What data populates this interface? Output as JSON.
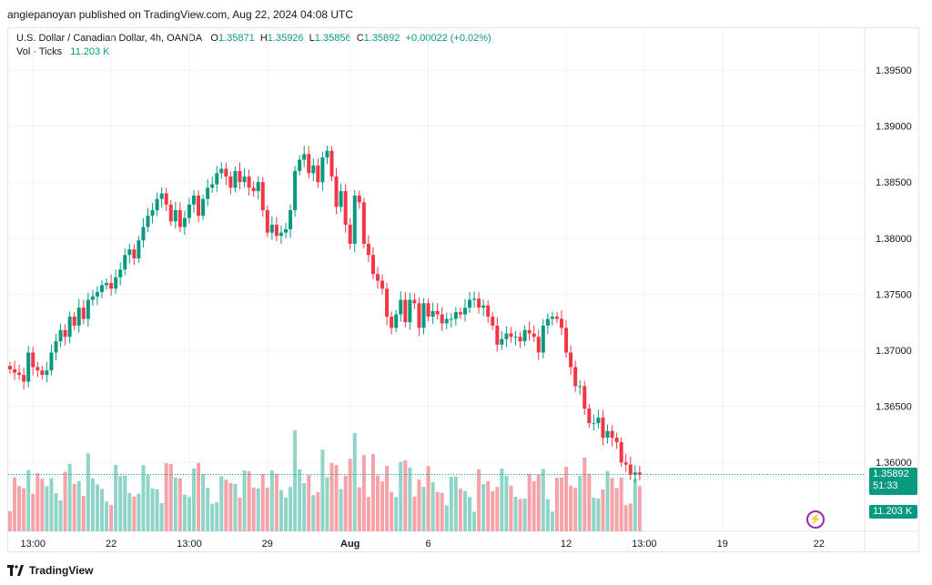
{
  "header": {
    "publish_text": "angiepanoyan published on TradingView.com, Aug 22, 2024 04:08 UTC"
  },
  "legend": {
    "symbol": "U.S. Dollar / Canadian Dollar, 4h, OANDA",
    "o_label": "O",
    "o": "1.35871",
    "h_label": "H",
    "h": "1.35926",
    "l_label": "L",
    "l": "1.35856",
    "c_label": "C",
    "c": "1.35892",
    "change": "+0.00022 (+0.02%)",
    "vol_label": "Vol · Ticks",
    "vol_value": "11.203 K"
  },
  "badges": {
    "price": "1.35892",
    "countdown": "51:33",
    "volume": "11.203 K"
  },
  "footer": {
    "brand": "TradingView"
  },
  "colors": {
    "up": "#089981",
    "down": "#f23645",
    "vol_up": "#8fd4c8",
    "vol_down": "#f5a3a8"
  },
  "chart_data": {
    "type": "candlestick",
    "title": "",
    "ylim": [
      1.355,
      1.3975
    ],
    "yticks": [
      "1.39500",
      "1.39000",
      "1.38500",
      "1.38000",
      "1.37500",
      "1.37000",
      "1.36500",
      "1.36000"
    ],
    "y_tick_values": [
      1.395,
      1.39,
      1.385,
      1.38,
      1.375,
      1.37,
      1.365,
      1.36
    ],
    "last_price": 1.35892,
    "xticks": [
      {
        "label": "13:00",
        "bar": 5,
        "bold": false
      },
      {
        "label": "22",
        "bar": 22,
        "bold": false
      },
      {
        "label": "13:00",
        "bar": 39,
        "bold": false
      },
      {
        "label": "29",
        "bar": 56,
        "bold": false
      },
      {
        "label": "Aug",
        "bar": 74,
        "bold": true
      },
      {
        "label": "6",
        "bar": 91,
        "bold": false
      },
      {
        "label": "12",
        "bar": 121,
        "bold": false
      },
      {
        "label": "13:00",
        "bar": 138,
        "bold": false
      },
      {
        "label": "19",
        "bar": 155,
        "bold": false
      },
      {
        "label": "22",
        "bar": 176,
        "bold": false
      }
    ],
    "close": [
      1.3683,
      1.368,
      1.3678,
      1.3672,
      1.3698,
      1.3685,
      1.3682,
      1.3678,
      1.3682,
      1.3698,
      1.3708,
      1.3718,
      1.3712,
      1.373,
      1.3722,
      1.3738,
      1.3728,
      1.3745,
      1.3748,
      1.3752,
      1.3758,
      1.376,
      1.3755,
      1.3765,
      1.3772,
      1.3785,
      1.379,
      1.3782,
      1.3798,
      1.381,
      1.382,
      1.3825,
      1.3835,
      1.384,
      1.383,
      1.3815,
      1.3825,
      1.381,
      1.3818,
      1.383,
      1.3838,
      1.382,
      1.3835,
      1.3845,
      1.3848,
      1.3858,
      1.3862,
      1.3855,
      1.3845,
      1.386,
      1.385,
      1.3855,
      1.3845,
      1.3842,
      1.385,
      1.3825,
      1.3805,
      1.3812,
      1.3802,
      1.3805,
      1.3808,
      1.3825,
      1.386,
      1.387,
      1.3875,
      1.3858,
      1.3865,
      1.385,
      1.3872,
      1.3878,
      1.3855,
      1.3828,
      1.3842,
      1.3812,
      1.3795,
      1.3838,
      1.3832,
      1.3795,
      1.3785,
      1.3768,
      1.3762,
      1.3755,
      1.373,
      1.372,
      1.3732,
      1.3745,
      1.3725,
      1.3745,
      1.3742,
      1.372,
      1.3742,
      1.373,
      1.3735,
      1.3732,
      1.3724,
      1.3728,
      1.3728,
      1.3734,
      1.3732,
      1.3738,
      1.3745,
      1.3746,
      1.3738,
      1.374,
      1.373,
      1.3722,
      1.3705,
      1.371,
      1.3715,
      1.3712,
      1.3712,
      1.3708,
      1.3718,
      1.3715,
      1.3712,
      1.3698,
      1.3722,
      1.3728,
      1.373,
      1.3728,
      1.372,
      1.3698,
      1.3685,
      1.3668,
      1.3668,
      1.3648,
      1.3635,
      1.3635,
      1.364,
      1.3622,
      1.3628,
      1.3622,
      1.3618,
      1.36,
      1.3598,
      1.3589,
      1.3591,
      1.3589
    ]
  }
}
